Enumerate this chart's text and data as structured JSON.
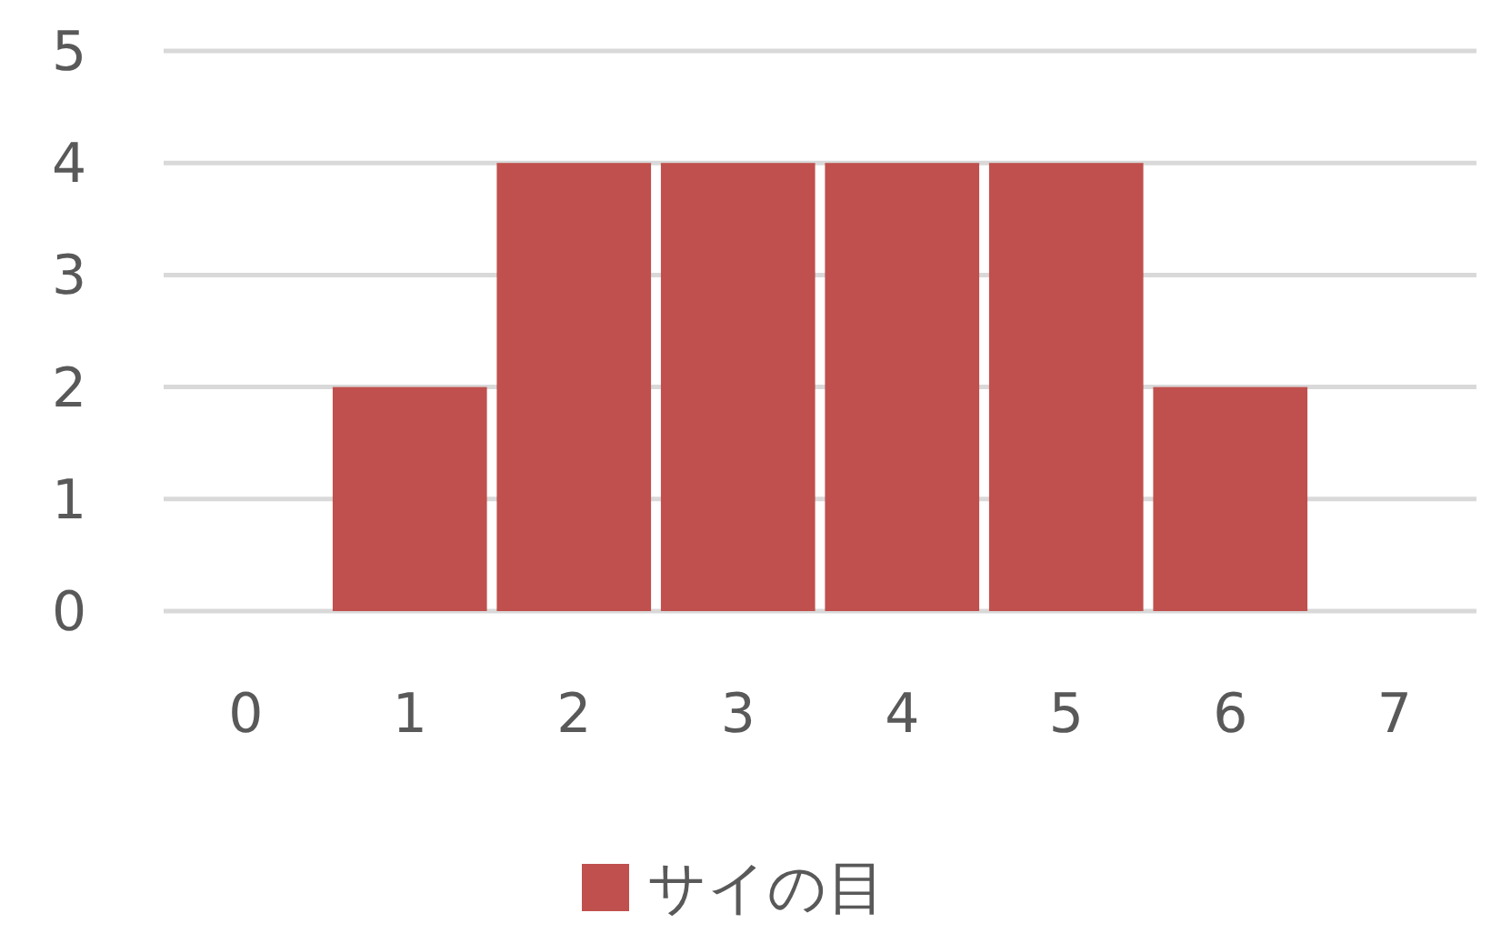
{
  "chart_data": {
    "type": "bar",
    "categories": [
      "0",
      "1",
      "2",
      "3",
      "4",
      "5",
      "6",
      "7"
    ],
    "series": [
      {
        "name": "サイの目",
        "color": "#c0504d",
        "values": [
          0,
          2,
          4,
          4,
          4,
          4,
          2,
          0
        ]
      }
    ],
    "ylim": [
      0,
      5
    ],
    "yticks": [
      0,
      1,
      2,
      3,
      4,
      5
    ],
    "grid": "y",
    "legend": "bottom"
  }
}
